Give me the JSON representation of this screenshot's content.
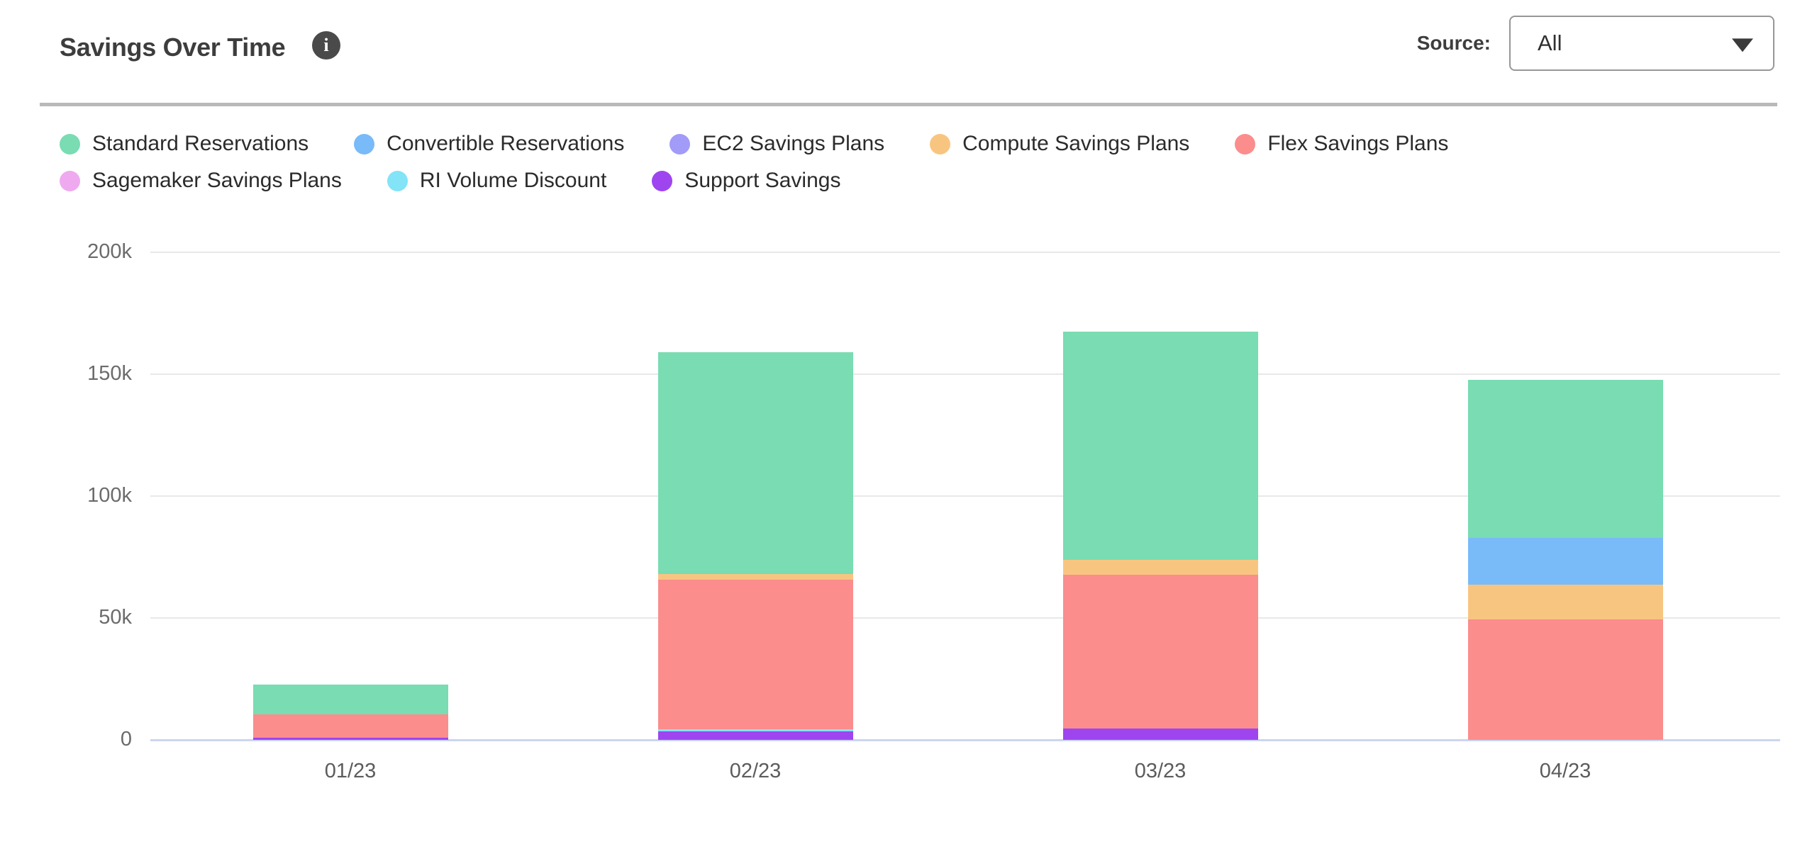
{
  "header": {
    "title": "Savings Over Time",
    "info_icon": "i",
    "source_label": "Source:",
    "source_value": "All"
  },
  "colors": {
    "title_text": "#3d3d3d",
    "legend_text": "#2b2b2b",
    "tick_text": "#6b6b6b",
    "gridline": "#e8e8e8",
    "axis_line": "#ccd5ef",
    "divider": "#b9b9b9",
    "info_icon_bg": "#4a4a4a",
    "select_border": "#979797"
  },
  "chart_data": {
    "type": "bar",
    "stacked": true,
    "title": "Savings Over Time",
    "unit": "thousands",
    "categories": [
      "01/23",
      "02/23",
      "03/23",
      "04/23"
    ],
    "series": [
      {
        "key": "standard",
        "name": "Standard Reservations",
        "color": "#79dcb2",
        "values_k": [
          12.3,
          91.0,
          93.7,
          64.8
        ]
      },
      {
        "key": "convertible",
        "name": "Convertible Reservations",
        "color": "#79baf9",
        "values_k": [
          0,
          0,
          0,
          19.3
        ]
      },
      {
        "key": "ec2",
        "name": "EC2 Savings Plans",
        "color": "#a29bf7",
        "values_k": [
          0,
          0,
          0,
          0
        ]
      },
      {
        "key": "compute",
        "name": "Compute Savings Plans",
        "color": "#f8c581",
        "values_k": [
          0,
          2.3,
          6.1,
          14.1
        ]
      },
      {
        "key": "flex",
        "name": "Flex Savings Plans",
        "color": "#fb8d8d",
        "values_k": [
          9.7,
          61.2,
          63.0,
          49.5
        ]
      },
      {
        "key": "sagemaker",
        "name": "Sagemaker Savings Plans",
        "color": "#efaaef",
        "values_k": [
          0,
          0,
          0,
          0
        ]
      },
      {
        "key": "ri_volume",
        "name": "RI Volume Discount",
        "color": "#83e3f7",
        "values_k": [
          0,
          1.1,
          0,
          0
        ]
      },
      {
        "key": "support",
        "name": "Support Savings",
        "color": "#9e45f0",
        "values_k": [
          0.8,
          3.4,
          4.6,
          0
        ]
      }
    ],
    "stack_order": "last series at bottom (reverse of legend order)",
    "y_ticks": [
      {
        "label": "0",
        "value_k": 0
      },
      {
        "label": "50k",
        "value_k": 50
      },
      {
        "label": "100k",
        "value_k": 100
      },
      {
        "label": "150k",
        "value_k": 150
      },
      {
        "label": "200k",
        "value_k": 200
      }
    ],
    "ylim_k": [
      0,
      200
    ],
    "grid": "horizontal",
    "legend_position": "top"
  }
}
